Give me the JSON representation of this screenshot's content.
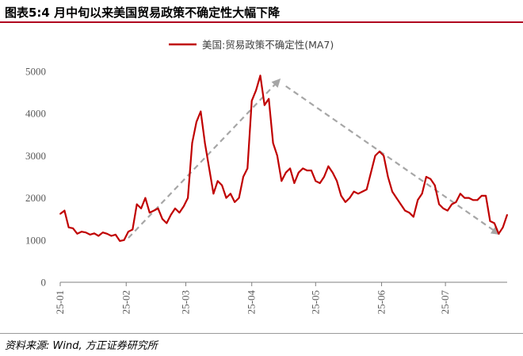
{
  "header": {
    "title": "图表5:4 月中旬以来美国贸易政策不确定性大幅下降"
  },
  "footer": {
    "source": "资料来源: Wind, 方正证券研究所"
  },
  "chart_data": {
    "type": "line",
    "title": "",
    "xlabel": "",
    "ylabel": "",
    "ylim": [
      0,
      5000
    ],
    "yticks": [
      0,
      1000,
      2000,
      3000,
      4000,
      5000
    ],
    "xticks": [
      "25-01",
      "25-02",
      "25-03",
      "25-04",
      "25-05",
      "25-06",
      "25-07"
    ],
    "grid": false,
    "legend_position": "top-center",
    "series": [
      {
        "name": "美国:贸易政策不确定性(MA7)",
        "color": "#c00000",
        "x": [
          "2025-01-01",
          "2025-01-03",
          "2025-01-05",
          "2025-01-07",
          "2025-01-09",
          "2025-01-11",
          "2025-01-13",
          "2025-01-15",
          "2025-01-17",
          "2025-01-19",
          "2025-01-21",
          "2025-01-23",
          "2025-01-25",
          "2025-01-27",
          "2025-01-29",
          "2025-01-31",
          "2025-02-02",
          "2025-02-04",
          "2025-02-06",
          "2025-02-08",
          "2025-02-10",
          "2025-02-12",
          "2025-02-14",
          "2025-02-16",
          "2025-02-18",
          "2025-02-20",
          "2025-02-22",
          "2025-02-24",
          "2025-02-26",
          "2025-02-28",
          "2025-03-02",
          "2025-03-04",
          "2025-03-06",
          "2025-03-08",
          "2025-03-10",
          "2025-03-12",
          "2025-03-14",
          "2025-03-16",
          "2025-03-18",
          "2025-03-20",
          "2025-03-22",
          "2025-03-24",
          "2025-03-26",
          "2025-03-28",
          "2025-03-30",
          "2025-04-01",
          "2025-04-03",
          "2025-04-05",
          "2025-04-07",
          "2025-04-09",
          "2025-04-11",
          "2025-04-13",
          "2025-04-15",
          "2025-04-17",
          "2025-04-19",
          "2025-04-21",
          "2025-04-23",
          "2025-04-25",
          "2025-04-27",
          "2025-04-29",
          "2025-05-01",
          "2025-05-03",
          "2025-05-05",
          "2025-05-07",
          "2025-05-09",
          "2025-05-11",
          "2025-05-13",
          "2025-05-15",
          "2025-05-17",
          "2025-05-19",
          "2025-05-21",
          "2025-05-23",
          "2025-05-25",
          "2025-05-27",
          "2025-05-29",
          "2025-05-31",
          "2025-06-02",
          "2025-06-04",
          "2025-06-06",
          "2025-06-08",
          "2025-06-10",
          "2025-06-12",
          "2025-06-14",
          "2025-06-16",
          "2025-06-18",
          "2025-06-20",
          "2025-06-22",
          "2025-06-24",
          "2025-06-26",
          "2025-06-28",
          "2025-06-30",
          "2025-07-02",
          "2025-07-04",
          "2025-07-06",
          "2025-07-08",
          "2025-07-10",
          "2025-07-12",
          "2025-07-14",
          "2025-07-16",
          "2025-07-18",
          "2025-07-20",
          "2025-07-22",
          "2025-07-24",
          "2025-07-26",
          "2025-07-28",
          "2025-07-30"
        ],
        "values": [
          1620,
          1700,
          1300,
          1280,
          1150,
          1200,
          1180,
          1130,
          1160,
          1100,
          1180,
          1150,
          1100,
          1130,
          980,
          1000,
          1200,
          1250,
          1850,
          1750,
          2000,
          1650,
          1700,
          1750,
          1500,
          1400,
          1600,
          1750,
          1650,
          1800,
          2000,
          3300,
          3800,
          4050,
          3300,
          2700,
          2100,
          2400,
          2300,
          2000,
          2100,
          1900,
          2000,
          2500,
          2700,
          4300,
          4550,
          4900,
          4200,
          4350,
          3300,
          3000,
          2400,
          2600,
          2700,
          2350,
          2600,
          2700,
          2650,
          2650,
          2400,
          2350,
          2500,
          2750,
          2600,
          2400,
          2050,
          1900,
          2000,
          2150,
          2100,
          2150,
          2200,
          2600,
          3000,
          3100,
          3000,
          2500,
          2150,
          2000,
          1850,
          1700,
          1650,
          1550,
          1950,
          2100,
          2500,
          2450,
          2300,
          1850,
          1750,
          1700,
          1850,
          1900,
          2100,
          2000,
          2000,
          1950,
          1950,
          2050,
          2050,
          1450,
          1400,
          1150,
          1300,
          1600
        ]
      }
    ],
    "annotations": [
      {
        "type": "dashed-arrow",
        "color": "#a6a6a6",
        "from": [
          "2025-02-02",
          1050
        ],
        "to": [
          "2025-04-14",
          4800
        ]
      },
      {
        "type": "dashed-arrow",
        "color": "#a6a6a6",
        "from": [
          "2025-04-17",
          4650
        ],
        "to": [
          "2025-07-26",
          1150
        ]
      }
    ]
  }
}
